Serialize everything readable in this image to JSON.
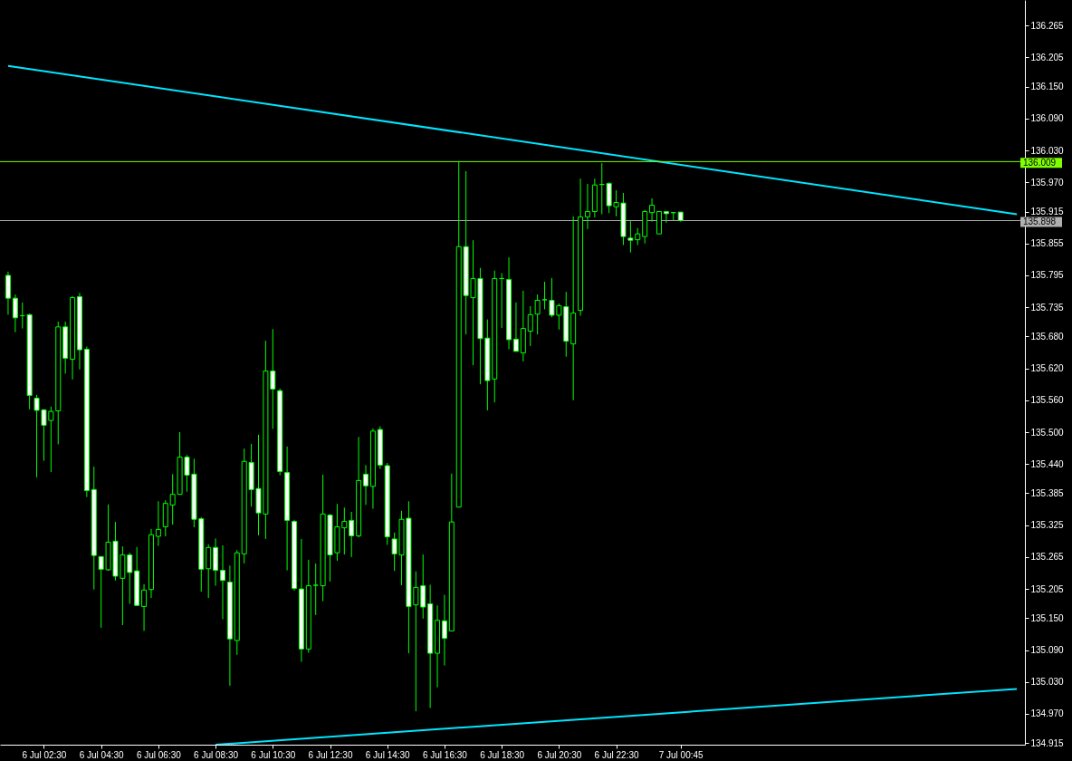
{
  "chart_data": {
    "type": "candlestick",
    "color": "#00ff00",
    "categories": [
      null,
      null,
      null,
      null,
      null,
      "6 Jul 02:30",
      null,
      null,
      null,
      null,
      null,
      null,
      null,
      "6 Jul 04:30",
      null,
      null,
      null,
      null,
      null,
      null,
      null,
      "6 Jul 06:30",
      null,
      null,
      null,
      null,
      null,
      null,
      null,
      "6 Jul 08:30",
      null,
      null,
      null,
      null,
      null,
      null,
      null,
      "6 Jul 10:30",
      null,
      null,
      null,
      null,
      null,
      null,
      null,
      "6 Jul 12:30",
      null,
      null,
      null,
      null,
      null,
      null,
      null,
      "6 Jul 14:30",
      null,
      null,
      null,
      null,
      null,
      null,
      null,
      "6 Jul 16:30",
      null,
      null,
      null,
      null,
      null,
      null,
      null,
      "6 Jul 18:30",
      null,
      null,
      null,
      null,
      null,
      null,
      null,
      "6 Jul 20:30",
      null,
      null,
      null,
      null,
      null,
      null,
      null,
      "6 Jul 22:30",
      null,
      null,
      null,
      null,
      null,
      null,
      null,
      null,
      "7 Jul 00:45",
      null,
      null,
      null,
      null,
      null,
      null,
      null,
      null,
      null,
      null,
      null,
      null,
      null,
      null,
      null,
      null,
      null,
      null,
      null,
      null,
      null,
      null,
      null,
      null,
      null,
      null,
      null,
      null,
      null,
      null,
      null,
      null,
      null,
      null,
      null,
      null,
      null,
      null,
      null,
      null,
      null,
      null,
      null,
      null,
      null,
      null,
      null
    ],
    "ohlc": [
      [
        135.795,
        135.802,
        135.721,
        135.752
      ],
      [
        135.752,
        135.759,
        135.688,
        135.715
      ],
      [
        135.719,
        135.744,
        135.695,
        135.719
      ],
      [
        135.721,
        135.723,
        135.543,
        135.569
      ],
      [
        135.564,
        135.57,
        135.415,
        135.541
      ],
      [
        135.542,
        135.543,
        135.446,
        135.513
      ],
      [
        135.522,
        135.548,
        135.425,
        135.539
      ],
      [
        135.54,
        135.708,
        135.477,
        135.698
      ],
      [
        135.698,
        135.708,
        135.61,
        135.639
      ],
      [
        135.637,
        135.756,
        135.599,
        135.753
      ],
      [
        135.755,
        135.762,
        135.618,
        135.655
      ],
      [
        135.656,
        135.661,
        135.378,
        135.39
      ],
      [
        135.392,
        135.435,
        135.204,
        135.268
      ],
      [
        135.266,
        135.266,
        135.132,
        135.242
      ],
      [
        135.241,
        135.364,
        135.239,
        135.293
      ],
      [
        135.295,
        135.331,
        135.221,
        135.229
      ],
      [
        135.225,
        135.285,
        135.137,
        135.269
      ],
      [
        135.269,
        135.273,
        135.177,
        135.236
      ],
      [
        135.239,
        135.284,
        135.174,
        135.174
      ],
      [
        135.172,
        135.214,
        135.126,
        135.203
      ],
      [
        135.204,
        135.318,
        135.188,
        135.307
      ],
      [
        135.304,
        135.37,
        135.286,
        135.317
      ],
      [
        135.322,
        135.372,
        135.304,
        135.366
      ],
      [
        135.363,
        135.421,
        135.326,
        135.383
      ],
      [
        135.383,
        135.5,
        135.382,
        135.453
      ],
      [
        135.453,
        135.457,
        135.388,
        135.419
      ],
      [
        135.421,
        135.45,
        135.321,
        135.336
      ],
      [
        135.337,
        135.34,
        135.2,
        135.242
      ],
      [
        135.243,
        135.289,
        135.188,
        135.283
      ],
      [
        135.283,
        135.3,
        135.211,
        135.24
      ],
      [
        135.24,
        135.287,
        135.148,
        135.221
      ],
      [
        135.218,
        135.249,
        135.023,
        135.111
      ],
      [
        135.108,
        135.278,
        135.081,
        135.273
      ],
      [
        135.271,
        135.469,
        135.253,
        135.445
      ],
      [
        135.443,
        135.478,
        135.36,
        135.392
      ],
      [
        135.394,
        135.495,
        135.306,
        135.348
      ],
      [
        135.346,
        135.672,
        135.299,
        135.615
      ],
      [
        135.615,
        135.694,
        135.506,
        135.581
      ],
      [
        135.578,
        135.582,
        135.419,
        135.426
      ],
      [
        135.424,
        135.473,
        135.24,
        135.334
      ],
      [
        135.332,
        135.335,
        135.202,
        135.206
      ],
      [
        135.205,
        135.299,
        135.068,
        135.092
      ],
      [
        135.092,
        135.26,
        135.085,
        135.211
      ],
      [
        135.212,
        135.253,
        135.156,
        135.212
      ],
      [
        135.211,
        135.42,
        135.182,
        135.346
      ],
      [
        135.344,
        135.346,
        135.219,
        135.269
      ],
      [
        135.273,
        135.365,
        135.258,
        135.322
      ],
      [
        135.32,
        135.358,
        135.27,
        135.332
      ],
      [
        135.334,
        135.35,
        135.265,
        135.305
      ],
      [
        135.305,
        135.491,
        135.302,
        135.409
      ],
      [
        135.421,
        135.438,
        135.363,
        135.399
      ],
      [
        135.398,
        135.507,
        135.356,
        135.502
      ],
      [
        135.505,
        135.511,
        135.431,
        135.438
      ],
      [
        135.437,
        135.442,
        135.288,
        135.303
      ],
      [
        135.299,
        135.311,
        135.239,
        135.271
      ],
      [
        135.269,
        135.352,
        135.212,
        135.336
      ],
      [
        135.338,
        135.37,
        135.084,
        135.172
      ],
      [
        135.175,
        135.238,
        134.975,
        135.208
      ],
      [
        135.211,
        135.27,
        135.149,
        135.171
      ],
      [
        135.177,
        135.213,
        134.981,
        135.084
      ],
      [
        135.084,
        135.174,
        135.02,
        135.146
      ],
      [
        135.145,
        135.194,
        135.061,
        135.112
      ],
      [
        135.126,
        135.422,
        135.126,
        135.331
      ],
      [
        135.359,
        136.008,
        135.359,
        135.849
      ],
      [
        135.849,
        135.991,
        135.684,
        135.757
      ],
      [
        135.753,
        135.861,
        135.626,
        135.789
      ],
      [
        135.789,
        135.809,
        135.59,
        135.676
      ],
      [
        135.677,
        135.712,
        135.541,
        135.597
      ],
      [
        135.6,
        135.804,
        135.556,
        135.789
      ],
      [
        135.789,
        135.799,
        135.696,
        135.789
      ],
      [
        135.787,
        135.829,
        135.656,
        135.674
      ],
      [
        135.675,
        135.744,
        135.652,
        135.652
      ],
      [
        135.649,
        135.766,
        135.633,
        135.695
      ],
      [
        135.69,
        135.737,
        135.662,
        135.721
      ],
      [
        135.722,
        135.759,
        135.684,
        135.748
      ],
      [
        135.749,
        135.783,
        135.731,
        135.749
      ],
      [
        135.748,
        135.79,
        135.716,
        135.72
      ],
      [
        135.72,
        135.742,
        135.693,
        135.738
      ],
      [
        135.736,
        135.764,
        135.642,
        135.671
      ],
      [
        135.666,
        135.906,
        135.56,
        135.724
      ],
      [
        135.729,
        135.977,
        135.719,
        135.905
      ],
      [
        135.905,
        135.967,
        135.882,
        135.915
      ],
      [
        135.915,
        135.977,
        135.904,
        135.965
      ],
      [
        135.966,
        136.006,
        135.91,
        135.966
      ],
      [
        135.968,
        135.97,
        135.912,
        135.926
      ],
      [
        135.924,
        135.955,
        135.906,
        135.932
      ],
      [
        135.931,
        135.95,
        135.852,
        135.868
      ],
      [
        135.865,
        135.897,
        135.838,
        135.861
      ],
      [
        135.862,
        135.884,
        135.852,
        135.873
      ],
      [
        135.868,
        135.918,
        135.855,
        135.915
      ],
      [
        135.913,
        135.94,
        135.896,
        135.927
      ],
      [
        135.873,
        135.915,
        135.873,
        135.915
      ],
      [
        135.915,
        135.915,
        135.894,
        135.911
      ],
      [
        135.913,
        135.913,
        135.898,
        135.913
      ],
      [
        135.914,
        135.914,
        135.896,
        135.898
      ],
      null,
      null,
      null,
      null,
      null,
      null,
      null,
      null,
      null,
      null,
      null,
      null,
      null,
      null,
      null,
      null,
      null,
      null,
      null,
      null,
      null,
      null,
      null,
      null,
      null,
      null,
      null,
      null,
      null,
      null,
      null,
      null,
      null,
      null,
      null,
      null,
      null,
      null,
      null,
      null,
      null,
      null,
      null,
      null,
      null,
      null,
      null
    ],
    "colors": [
      "#ffffff",
      "#ffffff",
      "#00ff00",
      "#ffffff",
      "#ffffff",
      "#ffffff",
      "#000000",
      "#000000",
      "#ffffff",
      "#000000",
      "#ffffff",
      "#ffffff",
      "#ffffff",
      "#ffffff",
      "#000000",
      "#ffffff",
      "#000000",
      "#ffffff",
      "#ffffff",
      "#000000",
      "#000000",
      "#000000",
      "#000000",
      "#000000",
      "#000000",
      "#ffffff",
      "#ffffff",
      "#ffffff",
      "#000000",
      "#ffffff",
      "#ffffff",
      "#ffffff",
      "#000000",
      "#000000",
      "#ffffff",
      "#ffffff",
      "#000000",
      "#ffffff",
      "#ffffff",
      "#ffffff",
      "#ffffff",
      "#ffffff",
      "#000000",
      "#00ff00",
      "#000000",
      "#ffffff",
      "#000000",
      "#000000",
      "#ffffff",
      "#000000",
      "#ffffff",
      "#000000",
      "#ffffff",
      "#ffffff",
      "#ffffff",
      "#000000",
      "#ffffff",
      "#000000",
      "#ffffff",
      "#ffffff",
      "#000000",
      "#ffffff",
      "#000000",
      "#000000",
      "#ffffff",
      "#000000",
      "#ffffff",
      "#ffffff",
      "#000000",
      "#00ff00",
      "#ffffff",
      "#ffffff",
      "#000000",
      "#000000",
      "#000000",
      "#00ff00",
      "#ffffff",
      "#000000",
      "#ffffff",
      "#000000",
      "#000000",
      "#000000",
      "#000000",
      "#00ff00",
      "#ffffff",
      "#000000",
      "#ffffff",
      "#ffffff",
      "#000000",
      "#000000",
      "#000000",
      "#000000",
      "#ffffff",
      "#00ff00",
      "#ffffff",
      null,
      null,
      null,
      null,
      null,
      null,
      null,
      null,
      null,
      null,
      null,
      null,
      null,
      null,
      null,
      null,
      null,
      null,
      null,
      null,
      null,
      null,
      null,
      null,
      null,
      null,
      null,
      null,
      null,
      null,
      null,
      null,
      null,
      null,
      null,
      null,
      null,
      null,
      null,
      null,
      null,
      null,
      null,
      null,
      null,
      null,
      null
    ],
    "series": [
      {
        "type": "line",
        "color": "#00e5ff",
        "values": [
          136.189,
          null,
          null,
          null,
          null,
          null,
          null,
          null,
          null,
          null,
          null,
          null,
          null,
          null,
          null,
          null,
          null,
          null,
          null,
          null,
          null,
          null,
          null,
          null,
          null,
          null,
          null,
          null,
          null,
          null,
          null,
          null,
          null,
          null,
          null,
          null,
          null,
          null,
          null,
          null,
          null,
          null,
          null,
          null,
          null,
          null,
          null,
          null,
          null,
          null,
          null,
          null,
          null,
          null,
          null,
          null,
          null,
          null,
          null,
          null,
          null,
          null,
          null,
          null,
          null,
          null,
          null,
          null,
          null,
          null,
          null,
          null,
          null,
          null,
          null,
          null,
          null,
          null,
          null,
          null,
          null,
          null,
          null,
          null,
          null,
          null,
          null,
          null,
          null,
          null,
          null,
          null,
          null,
          null,
          null,
          null,
          null,
          null,
          null,
          null,
          null,
          null,
          null,
          null,
          null,
          null,
          null,
          null,
          null,
          null,
          null,
          null,
          null,
          null,
          null,
          null,
          null,
          null,
          null,
          null,
          null,
          null,
          null,
          null,
          null,
          null,
          null,
          null,
          null,
          null,
          null,
          null,
          null,
          null,
          null,
          null,
          null,
          null,
          null,
          null,
          null,
          135.91
        ]
      },
      {
        "type": "line",
        "color": "#00e5ff",
        "values": [
          null,
          null,
          null,
          null,
          null,
          null,
          null,
          null,
          null,
          null,
          null,
          null,
          null,
          null,
          null,
          null,
          null,
          null,
          null,
          null,
          null,
          null,
          null,
          null,
          null,
          null,
          null,
          null,
          null,
          134.912,
          null,
          null,
          null,
          null,
          null,
          null,
          null,
          null,
          null,
          null,
          null,
          null,
          null,
          null,
          null,
          null,
          null,
          null,
          null,
          null,
          null,
          null,
          null,
          null,
          null,
          null,
          null,
          null,
          null,
          null,
          null,
          null,
          null,
          null,
          null,
          null,
          null,
          null,
          null,
          null,
          null,
          null,
          null,
          null,
          null,
          null,
          null,
          null,
          null,
          null,
          null,
          null,
          null,
          null,
          null,
          null,
          null,
          null,
          null,
          null,
          null,
          null,
          null,
          null,
          null,
          null,
          null,
          null,
          null,
          null,
          null,
          null,
          null,
          null,
          null,
          null,
          null,
          null,
          null,
          null,
          null,
          null,
          null,
          null,
          null,
          null,
          null,
          null,
          null,
          null,
          null,
          null,
          null,
          null,
          null,
          null,
          null,
          null,
          null,
          null,
          null,
          null,
          null,
          null,
          null,
          null,
          null,
          null,
          null,
          null,
          null,
          135.017
        ]
      }
    ],
    "ref_lines": [
      {
        "axis": "y",
        "value": 136.009,
        "label": "136.009",
        "color": "#80ff00"
      },
      {
        "axis": "y",
        "value": 135.898,
        "label": "135.898",
        "color": "#b0b0b0"
      }
    ],
    "ylim": [
      134.912,
      136.313
    ],
    "yticks": [
      136.265,
      136.205,
      {
        "value": 136.15,
        "label": "136.150"
      },
      {
        "value": 136.09,
        "label": "136.090"
      },
      {
        "value": 136.03,
        "label": "136.030"
      },
      {
        "value": 135.97,
        "label": "135.970"
      },
      135.915,
      135.855,
      135.795,
      135.735,
      {
        "value": 135.68,
        "label": "135.680"
      },
      {
        "value": 135.62,
        "label": "135.620"
      },
      {
        "value": 135.56,
        "label": "135.560"
      },
      {
        "value": 135.5,
        "label": "135.500"
      },
      {
        "value": 135.44,
        "label": "135.440"
      },
      135.385,
      135.325,
      135.265,
      135.205,
      {
        "value": 135.15,
        "label": "135.150"
      },
      {
        "value": 135.09,
        "label": "135.090"
      },
      {
        "value": 135.03,
        "label": "135.030"
      },
      {
        "value": 134.97,
        "label": "134.970"
      },
      134.915
    ]
  }
}
